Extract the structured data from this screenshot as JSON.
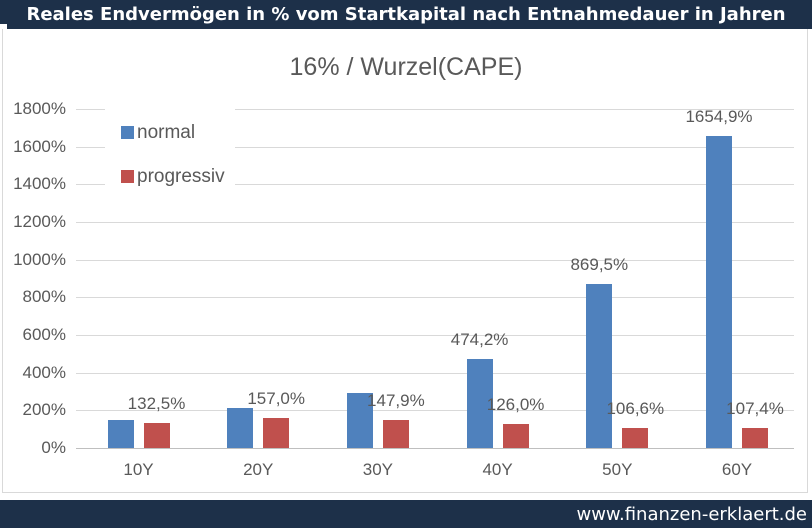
{
  "header": {
    "title": "Reales Endvermögen in % vom Startkapital nach Entnahmedauer in Jahren"
  },
  "footer": {
    "url": "www.finanzen-erklaert.de"
  },
  "colors": {
    "brand_navy": "#1d3049",
    "series_blue": "#4f81bd",
    "series_red": "#c0504d",
    "gridline": "#d9d9d9",
    "axis_text": "#595959"
  },
  "chart_data": {
    "type": "bar",
    "title": "16% / Wurzel(CAPE)",
    "categories": [
      "10Y",
      "20Y",
      "30Y",
      "40Y",
      "50Y",
      "60Y"
    ],
    "series": [
      {
        "name": "normal",
        "color": "#4f81bd",
        "values": [
          148,
          215,
          294,
          474.2,
          869.5,
          1654.9
        ],
        "labels": [
          null,
          null,
          null,
          "474,2%",
          "869,5%",
          "1654,9%"
        ]
      },
      {
        "name": "progressiv",
        "color": "#c0504d",
        "values": [
          132.5,
          157.0,
          147.9,
          126.0,
          106.6,
          107.4
        ],
        "labels": [
          "132,5%",
          "157,0%",
          "147,9%",
          "126,0%",
          "106,6%",
          "107,4%"
        ]
      }
    ],
    "ylim": [
      0,
      1800
    ],
    "ytick_step": 200,
    "ytick_suffix": "%",
    "grid": true,
    "legend_position": "top-left"
  }
}
